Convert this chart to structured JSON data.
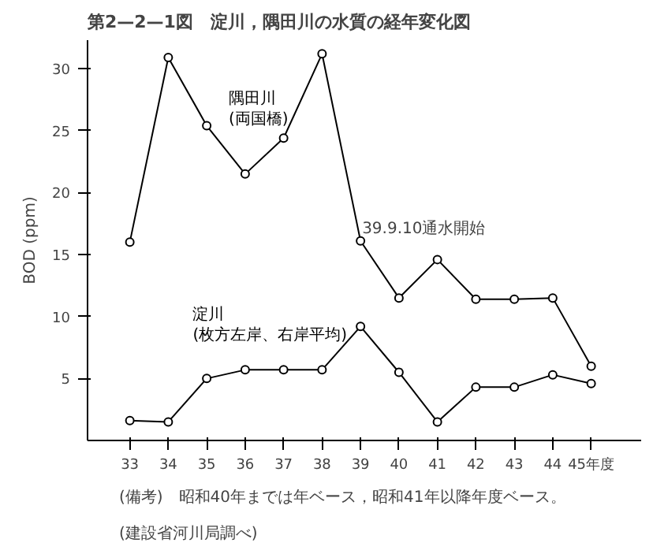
{
  "chart_data": {
    "type": "line",
    "title": "第2—2—1図　淀川，隅田川の水質の経年変化図",
    "ylabel": "BOD (ppm)",
    "x": [
      33,
      34,
      35,
      36,
      37,
      38,
      39,
      40,
      41,
      42,
      43,
      44,
      45
    ],
    "series": [
      {
        "name": "隅田川\n(両国橋)",
        "color": "#000000",
        "marker": "circle",
        "values": [
          16.0,
          30.9,
          25.4,
          21.5,
          24.4,
          31.2,
          16.1,
          11.5,
          14.6,
          11.4,
          11.4,
          11.5,
          6.0
        ]
      },
      {
        "name": "淀川\n(枚方左岸、右岸平均)",
        "color": "#000000",
        "marker": "circle",
        "values": [
          1.6,
          1.5,
          5.0,
          5.7,
          5.7,
          5.7,
          9.2,
          5.5,
          1.5,
          4.3,
          4.3,
          5.3,
          4.6
        ]
      }
    ],
    "xlim": [
      31.9,
      46.3
    ],
    "ylim": [
      0,
      32.3
    ],
    "xticks": [
      33,
      34,
      35,
      36,
      37,
      38,
      39,
      40,
      41,
      42,
      43,
      44,
      {
        "value": 45,
        "label": "45年度"
      }
    ],
    "yticks": [
      5,
      10,
      15,
      20,
      25,
      30
    ],
    "grid": false,
    "line_style": "solid",
    "annotations": [
      {
        "text": "39.9.10通水開始",
        "x": 39,
        "y": 16.1
      },
      "(建設省河川局調べ)",
      "(備考)　昭和40年までは年ベース，昭和41年以降年度ベース。"
    ]
  }
}
